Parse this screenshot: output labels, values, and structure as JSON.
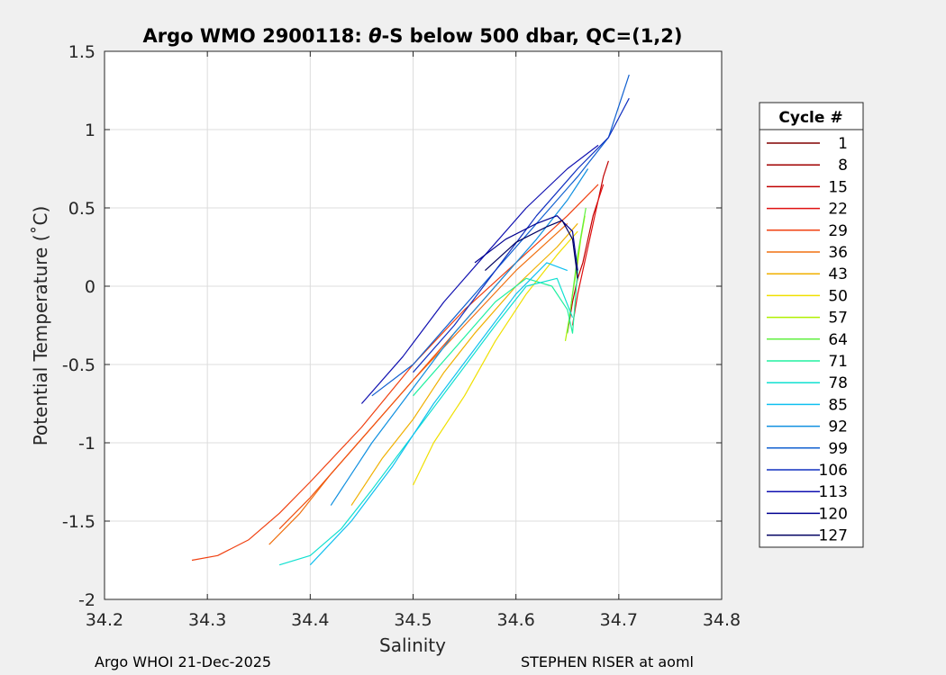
{
  "chart_data": {
    "type": "line",
    "title": "Argo WMO 2900118: θ-S below 500 dbar,  QC=(1,2)",
    "title_prefix": "Argo WMO 2900118: ",
    "title_theta": "θ",
    "title_suffix": "-S below 500 dbar,  QC=(1,2)",
    "xlabel": "Salinity",
    "ylabel": "Potential Temperature (˚C)",
    "xlim": [
      34.2,
      34.8
    ],
    "ylim": [
      -2,
      1.5
    ],
    "xticks": [
      34.2,
      34.3,
      34.4,
      34.5,
      34.6,
      34.7,
      34.8
    ],
    "xtick_labels": [
      "34.2",
      "34.3",
      "34.4",
      "34.5",
      "34.6",
      "34.7",
      "34.8"
    ],
    "yticks": [
      -2,
      -1.5,
      -1,
      -0.5,
      0,
      0.5,
      1,
      1.5
    ],
    "ytick_labels": [
      "-2",
      "-1.5",
      "-1",
      "-0.5",
      "0",
      "0.5",
      "1",
      "1.5"
    ],
    "grid": true,
    "legend": {
      "title": "Cycle #",
      "placement": "right",
      "entries": [
        {
          "label": "1",
          "color": "#800000"
        },
        {
          "label": "8",
          "color": "#a00000"
        },
        {
          "label": "15",
          "color": "#c00000"
        },
        {
          "label": "22",
          "color": "#e01010"
        },
        {
          "label": "29",
          "color": "#f04010"
        },
        {
          "label": "36",
          "color": "#f07010"
        },
        {
          "label": "43",
          "color": "#f0b000"
        },
        {
          "label": "50",
          "color": "#f0e000"
        },
        {
          "label": "57",
          "color": "#b0f000"
        },
        {
          "label": "64",
          "color": "#60f040"
        },
        {
          "label": "71",
          "color": "#20f0a0"
        },
        {
          "label": "78",
          "color": "#10e0d0"
        },
        {
          "label": "85",
          "color": "#10c0f0"
        },
        {
          "label": "92",
          "color": "#1090e0"
        },
        {
          "label": "99",
          "color": "#1060d0"
        },
        {
          "label": "106",
          "color": "#1030c0"
        },
        {
          "label": "113",
          "color": "#1010b0"
        },
        {
          "label": "120",
          "color": "#000090"
        },
        {
          "label": "127",
          "color": "#000060"
        }
      ]
    },
    "series": [
      {
        "color": "#c00000",
        "x": [
          34.65,
          34.655,
          34.66,
          34.665,
          34.67,
          34.675,
          34.68,
          34.685,
          34.69
        ],
        "y": [
          -0.3,
          -0.1,
          0.05,
          0.15,
          0.3,
          0.45,
          0.55,
          0.7,
          0.8
        ]
      },
      {
        "color": "#e01010",
        "x": [
          34.655,
          34.66,
          34.665,
          34.67,
          34.675,
          34.68,
          34.685
        ],
        "y": [
          -0.25,
          -0.05,
          0.1,
          0.25,
          0.4,
          0.55,
          0.65
        ]
      },
      {
        "color": "#f04010",
        "x": [
          34.285,
          34.31,
          34.34,
          34.37,
          34.4,
          34.45,
          34.5,
          34.55,
          34.6,
          34.65,
          34.68
        ],
        "y": [
          -1.75,
          -1.72,
          -1.62,
          -1.45,
          -1.25,
          -0.9,
          -0.5,
          -0.15,
          0.15,
          0.45,
          0.65
        ]
      },
      {
        "color": "#f07010",
        "x": [
          34.36,
          34.39,
          34.42,
          34.46,
          34.5,
          34.55,
          34.6,
          34.65
        ],
        "y": [
          -1.65,
          -1.45,
          -1.2,
          -0.9,
          -0.6,
          -0.25,
          0.1,
          0.4
        ]
      },
      {
        "color": "#f05010",
        "x": [
          34.37,
          34.4,
          34.44,
          34.48,
          34.52,
          34.56,
          34.6
        ],
        "y": [
          -1.55,
          -1.35,
          -1.05,
          -0.75,
          -0.45,
          -0.15,
          0.15
        ]
      },
      {
        "color": "#f0b000",
        "x": [
          34.44,
          34.47,
          34.5,
          34.53,
          34.56,
          34.6,
          34.64,
          34.66
        ],
        "y": [
          -1.4,
          -1.1,
          -0.85,
          -0.55,
          -0.3,
          0.0,
          0.25,
          0.4
        ]
      },
      {
        "color": "#f0e000",
        "x": [
          34.5,
          34.52,
          34.55,
          34.58,
          34.61,
          34.64,
          34.66
        ],
        "y": [
          -1.27,
          -1.0,
          -0.7,
          -0.35,
          -0.05,
          0.2,
          0.35
        ]
      },
      {
        "color": "#b0f000",
        "x": [
          34.648,
          34.652,
          34.655,
          34.66,
          34.663,
          34.667
        ],
        "y": [
          -0.35,
          -0.2,
          -0.05,
          0.15,
          0.3,
          0.45
        ]
      },
      {
        "color": "#60f040",
        "x": [
          34.65,
          34.653,
          34.656,
          34.66,
          34.664,
          34.668
        ],
        "y": [
          -0.3,
          -0.15,
          0.0,
          0.2,
          0.35,
          0.5
        ]
      },
      {
        "color": "#20f0a0",
        "x": [
          34.5,
          34.54,
          34.58,
          34.61,
          34.635,
          34.65,
          34.655,
          34.66
        ],
        "y": [
          -0.7,
          -0.4,
          -0.1,
          0.05,
          0.0,
          -0.15,
          -0.3,
          0.1
        ]
      },
      {
        "color": "#10e0d0",
        "x": [
          34.37,
          34.4,
          34.43,
          34.46,
          34.5,
          34.54,
          34.58,
          34.61,
          34.64,
          34.655
        ],
        "y": [
          -1.78,
          -1.72,
          -1.55,
          -1.3,
          -0.95,
          -0.6,
          -0.25,
          0.0,
          0.05,
          -0.2
        ]
      },
      {
        "color": "#10c0f0",
        "x": [
          34.4,
          34.44,
          34.48,
          34.52,
          34.56,
          34.6,
          34.63,
          34.65
        ],
        "y": [
          -1.78,
          -1.5,
          -1.15,
          -0.75,
          -0.4,
          -0.05,
          0.15,
          0.1
        ]
      },
      {
        "color": "#1090e0",
        "x": [
          34.42,
          34.46,
          34.5,
          34.54,
          34.58,
          34.62,
          34.65,
          34.67
        ],
        "y": [
          -1.4,
          -1.0,
          -0.65,
          -0.3,
          0.0,
          0.3,
          0.55,
          0.75
        ]
      },
      {
        "color": "#1060d0",
        "x": [
          34.46,
          34.5,
          34.54,
          34.58,
          34.62,
          34.66,
          34.69,
          34.7,
          34.71
        ],
        "y": [
          -0.7,
          -0.5,
          -0.2,
          0.1,
          0.4,
          0.7,
          0.95,
          1.15,
          1.35
        ]
      },
      {
        "color": "#1030c0",
        "x": [
          34.5,
          34.54,
          34.58,
          34.62,
          34.66,
          34.69,
          34.71
        ],
        "y": [
          -0.55,
          -0.25,
          0.1,
          0.45,
          0.75,
          0.95,
          1.2
        ]
      },
      {
        "color": "#1010b0",
        "x": [
          34.45,
          34.49,
          34.53,
          34.57,
          34.61,
          34.65,
          34.68
        ],
        "y": [
          -0.75,
          -0.45,
          -0.1,
          0.2,
          0.5,
          0.75,
          0.9
        ]
      },
      {
        "color": "#000090",
        "x": [
          34.56,
          34.59,
          34.62,
          34.64,
          34.655,
          34.66
        ],
        "y": [
          0.15,
          0.3,
          0.4,
          0.45,
          0.35,
          0.1
        ]
      },
      {
        "color": "#000060",
        "x": [
          34.57,
          34.6,
          34.63,
          34.645,
          34.655,
          34.66
        ],
        "y": [
          0.1,
          0.28,
          0.38,
          0.42,
          0.3,
          0.05
        ]
      }
    ]
  },
  "footer": {
    "left": "Argo WHOI 21-Dec-2025",
    "right": "STEPHEN RISER at aoml"
  }
}
